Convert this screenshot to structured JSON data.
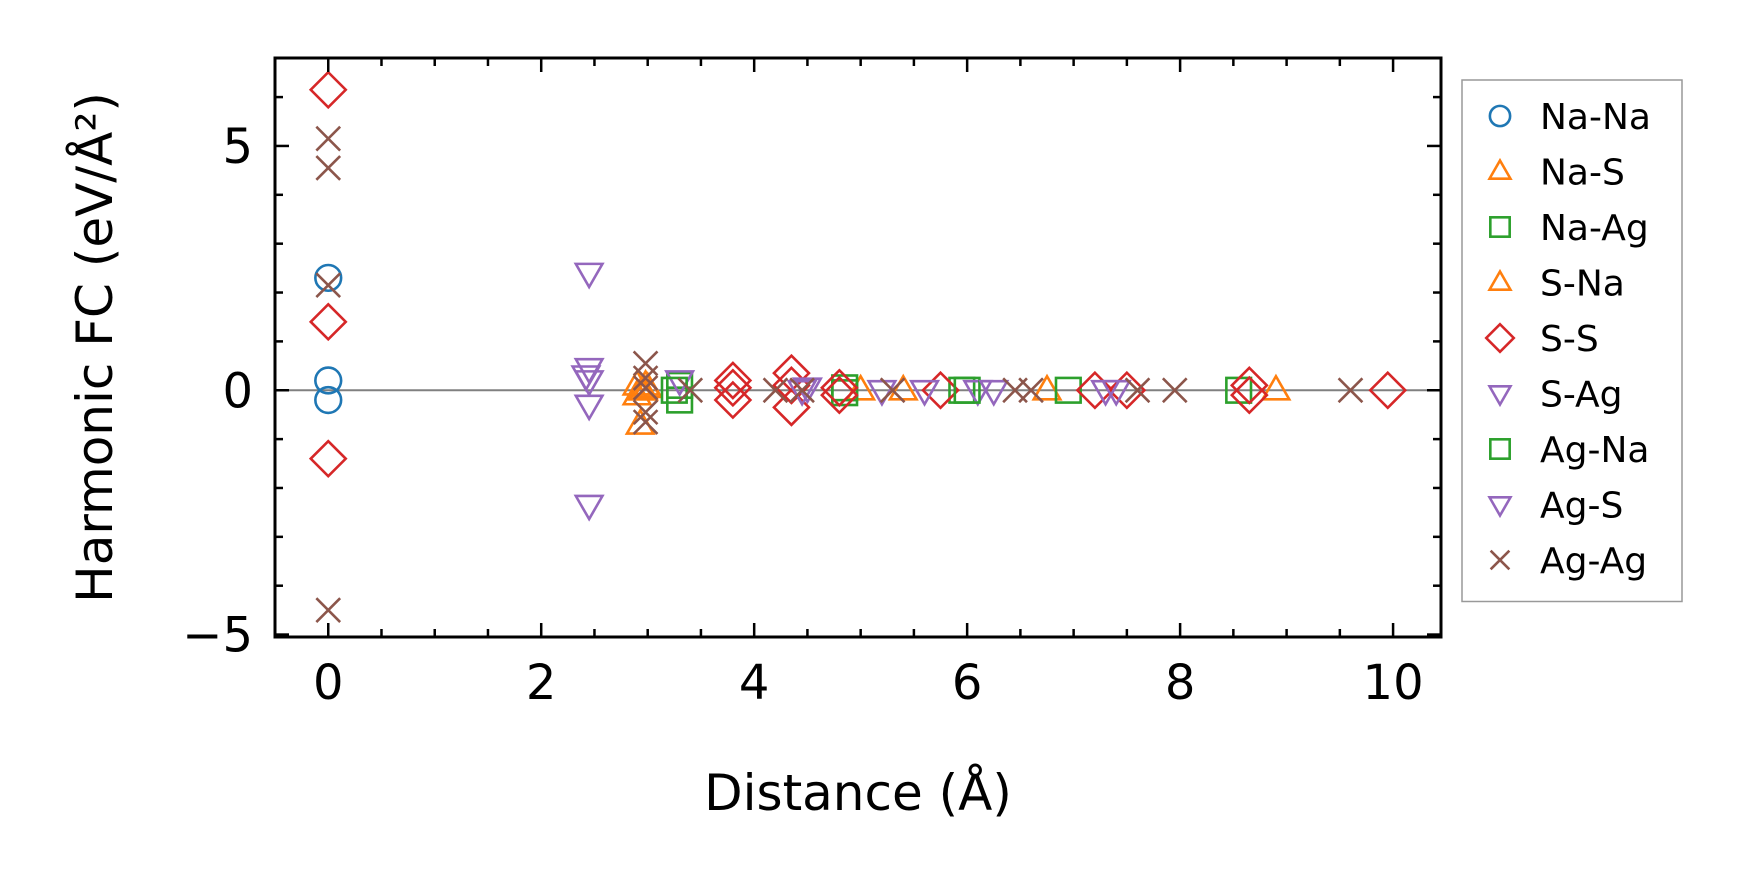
{
  "chart_data": {
    "type": "scatter",
    "xlabel": "Distance (Å)",
    "ylabel": "Harmonic FC (eV/Å²)",
    "xlim": [
      -0.5,
      10.45
    ],
    "ylim": [
      -5.05,
      6.8
    ],
    "x_ticks": [
      0,
      2,
      4,
      6,
      8,
      10
    ],
    "x_tick_labels": [
      "0",
      "2",
      "4",
      "6",
      "8",
      "10"
    ],
    "y_ticks": [
      -5,
      0,
      5
    ],
    "y_tick_labels": [
      "−5",
      "0",
      "5"
    ],
    "x_minor_step": 0.5,
    "y_minor_step": 1,
    "zero_line": true,
    "grid": false,
    "legend_position": "outside-right",
    "series": [
      {
        "name": "Na-Na",
        "marker": "circle",
        "color": "#1f77b4",
        "points": [
          [
            0,
            2.3
          ],
          [
            0,
            0.2
          ],
          [
            0,
            -0.2
          ]
        ]
      },
      {
        "name": "Na-S",
        "marker": "triangle-up",
        "color": "#ff7f0e",
        "points": [
          [
            2.9,
            0.1
          ],
          [
            2.9,
            -0.1
          ],
          [
            2.93,
            -0.7
          ],
          [
            2.96,
            0.0
          ],
          [
            3.0,
            0.05
          ],
          [
            5.0,
            0.0
          ],
          [
            5.4,
            0.0
          ],
          [
            6.75,
            0.0
          ],
          [
            8.9,
            0.0
          ]
        ]
      },
      {
        "name": "Na-Ag",
        "marker": "square",
        "color": "#2ca02c",
        "points": [
          [
            3.3,
            0.1
          ],
          [
            3.3,
            -0.2
          ],
          [
            4.85,
            0.05
          ],
          [
            4.85,
            -0.05
          ],
          [
            5.95,
            0.0
          ],
          [
            6.95,
            0.0
          ],
          [
            8.55,
            0.0
          ]
        ]
      },
      {
        "name": "S-Na",
        "marker": "triangle-up",
        "color": "#ff7f0e",
        "points": [
          [
            2.95,
            0.0
          ],
          [
            2.98,
            0.1
          ]
        ]
      },
      {
        "name": "S-S",
        "marker": "diamond",
        "color": "#d62728",
        "points": [
          [
            0,
            6.15
          ],
          [
            0,
            1.4
          ],
          [
            0,
            -1.4
          ],
          [
            3.8,
            0.2
          ],
          [
            3.8,
            0.05
          ],
          [
            3.8,
            -0.2
          ],
          [
            4.35,
            0.35
          ],
          [
            4.35,
            0.1
          ],
          [
            4.35,
            -0.35
          ],
          [
            4.8,
            0.05
          ],
          [
            4.8,
            -0.1
          ],
          [
            5.75,
            0.0
          ],
          [
            7.2,
            0.0
          ],
          [
            7.5,
            0.0
          ],
          [
            8.65,
            0.1
          ],
          [
            8.65,
            -0.1
          ],
          [
            9.95,
            0.0
          ]
        ]
      },
      {
        "name": "S-Ag",
        "marker": "triangle-down",
        "color": "#9467bd",
        "points": [
          [
            2.45,
            2.4
          ],
          [
            2.45,
            0.45
          ],
          [
            2.45,
            0.2
          ],
          [
            2.45,
            -0.3
          ],
          [
            2.45,
            -2.35
          ],
          [
            3.3,
            0.2
          ],
          [
            4.5,
            0.05
          ],
          [
            5.2,
            0.0
          ],
          [
            5.6,
            0.0
          ],
          [
            6.1,
            0.0
          ],
          [
            7.3,
            0.0
          ]
        ]
      },
      {
        "name": "Ag-Na",
        "marker": "square",
        "color": "#2ca02c",
        "points": [
          [
            3.25,
            0.0
          ],
          [
            6.0,
            0.0
          ]
        ]
      },
      {
        "name": "Ag-S",
        "marker": "triangle-down",
        "color": "#9467bd",
        "points": [
          [
            2.42,
            0.3
          ],
          [
            4.45,
            0.0
          ],
          [
            6.25,
            0.0
          ],
          [
            7.4,
            0.0
          ]
        ]
      },
      {
        "name": "Ag-Ag",
        "marker": "cross",
        "color": "#8c564b",
        "points": [
          [
            0,
            5.15
          ],
          [
            0,
            4.55
          ],
          [
            0,
            2.15
          ],
          [
            0,
            -4.5
          ],
          [
            2.98,
            0.55
          ],
          [
            2.98,
            0.25
          ],
          [
            2.98,
            0.05
          ],
          [
            2.98,
            -0.45
          ],
          [
            2.98,
            -0.65
          ],
          [
            3.4,
            0.0
          ],
          [
            4.2,
            0.0
          ],
          [
            4.45,
            0.0
          ],
          [
            5.3,
            0.0
          ],
          [
            6.45,
            0.0
          ],
          [
            6.6,
            0.0
          ],
          [
            7.6,
            0.0
          ],
          [
            7.95,
            0.0
          ],
          [
            9.6,
            0.0
          ]
        ]
      }
    ]
  }
}
